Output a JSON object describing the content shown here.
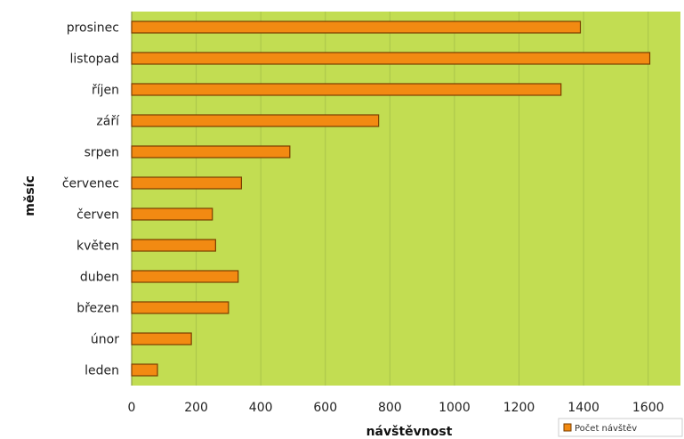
{
  "chart_data": {
    "type": "bar",
    "orientation": "horizontal",
    "categories": [
      "prosinec",
      "listopad",
      "říjen",
      "září",
      "srpen",
      "červenec",
      "červen",
      "květen",
      "duben",
      "březen",
      "únor",
      "leden"
    ],
    "series": [
      {
        "name": "Počet návštěv",
        "values": [
          1390,
          1605,
          1330,
          765,
          490,
          340,
          250,
          260,
          330,
          300,
          185,
          80
        ]
      }
    ],
    "xlabel": "návštěvnost",
    "ylabel": "měsíc",
    "xlim": [
      0,
      1700
    ],
    "xticks": [
      "0",
      "200",
      "400",
      "600",
      "800",
      "1000",
      "1200",
      "1400",
      "1600"
    ],
    "grid": true,
    "legend_position": "bottom-right",
    "colors": {
      "plot_background": "#c2dd52",
      "bar_fill": "#f28a12",
      "bar_stroke": "#7a3e00",
      "gridline": "#a9c44a",
      "legend_swatch": "#f28a12"
    }
  }
}
